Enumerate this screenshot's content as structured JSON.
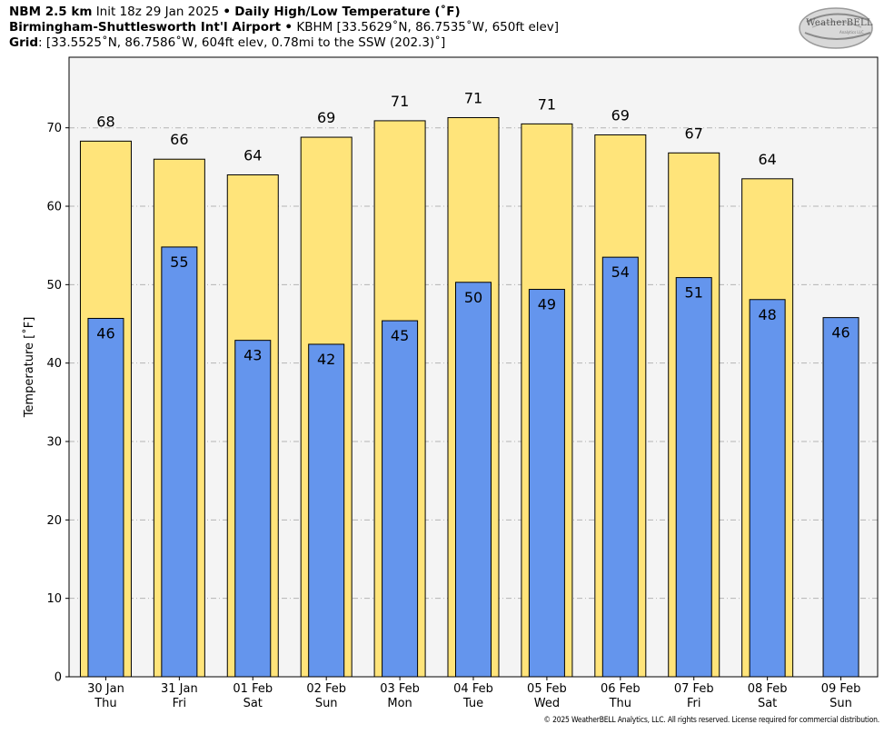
{
  "header": {
    "line1": {
      "model": "NBM 2.5 km",
      "init": "Init 18z 29 Jan 2025",
      "sep": "•",
      "product": "Daily High/Low Temperature (˚F)"
    },
    "line2": {
      "station": "Birmingham-Shuttlesworth Int'l Airport",
      "sep": "•",
      "details": "KBHM [33.5629˚N, 86.7535˚W, 650ft elev]"
    },
    "line3": {
      "label": "Grid",
      "details": ": [33.5525˚N, 86.7586˚W, 604ft elev, 0.78mi to the SSW (202.3)˚]"
    }
  },
  "logo": {
    "text": "WeatherBELL",
    "sub": "Analytics LLC"
  },
  "copyright": "© 2025 WeatherBELL Analytics, LLC. All rights reserved. License required for commercial distribution.",
  "chart_data": {
    "type": "bar",
    "ylabel": "Temperature [˚F]",
    "xlabel": "",
    "ylim": [
      0,
      79
    ],
    "yticks": [
      0,
      10,
      20,
      30,
      40,
      50,
      60,
      70
    ],
    "grid": true,
    "categories": [
      {
        "date": "30 Jan",
        "day": "Thu"
      },
      {
        "date": "31 Jan",
        "day": "Fri"
      },
      {
        "date": "01 Feb",
        "day": "Sat"
      },
      {
        "date": "02 Feb",
        "day": "Sun"
      },
      {
        "date": "03 Feb",
        "day": "Mon"
      },
      {
        "date": "04 Feb",
        "day": "Tue"
      },
      {
        "date": "05 Feb",
        "day": "Wed"
      },
      {
        "date": "06 Feb",
        "day": "Thu"
      },
      {
        "date": "07 Feb",
        "day": "Fri"
      },
      {
        "date": "08 Feb",
        "day": "Sat"
      },
      {
        "date": "09 Feb",
        "day": "Sun"
      }
    ],
    "series": [
      {
        "color": "#FFE47A",
        "values": [
          68.3,
          66.0,
          64.0,
          68.8,
          70.9,
          71.3,
          70.5,
          69.1,
          66.8,
          63.5,
          null
        ],
        "labels": [
          "68",
          "66",
          "64",
          "69",
          "71",
          "71",
          "71",
          "69",
          "67",
          "64",
          ""
        ]
      },
      {
        "color": "#6495ED",
        "values": [
          45.7,
          54.8,
          42.9,
          42.4,
          45.4,
          50.3,
          49.4,
          53.5,
          50.9,
          48.1,
          45.8
        ],
        "labels": [
          "46",
          "55",
          "43",
          "42",
          "45",
          "50",
          "49",
          "54",
          "51",
          "48",
          "46"
        ]
      }
    ],
    "background": "#F4F4F4"
  }
}
